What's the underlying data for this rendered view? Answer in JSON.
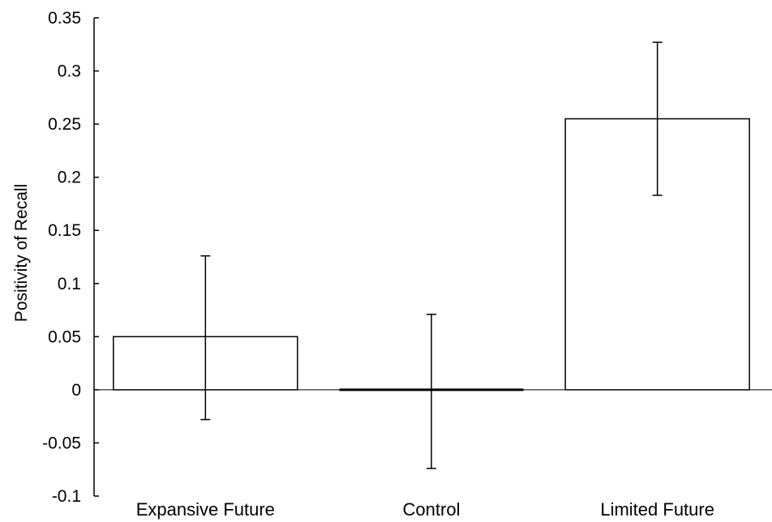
{
  "chart_data": {
    "type": "bar",
    "title": "",
    "xlabel": "",
    "ylabel": "Positivity of Recall",
    "categories": [
      "Expansive Future",
      "Control",
      "Limited Future"
    ],
    "values": [
      0.05,
      0.0,
      0.255
    ],
    "error_upper": [
      0.126,
      0.071,
      0.327
    ],
    "error_lower": [
      -0.028,
      -0.074,
      0.183
    ],
    "ylim": [
      -0.1,
      0.35
    ],
    "yticks": [
      -0.1,
      -0.05,
      0,
      0.05,
      0.1,
      0.15,
      0.2,
      0.25,
      0.3,
      0.35
    ],
    "ytick_labels": [
      "-0.1",
      "-0.05",
      "0",
      "0.05",
      "0.1",
      "0.15",
      "0.2",
      "0.25",
      "0.3",
      "0.35"
    ],
    "grid": false,
    "legend": "none",
    "bar_fill": "#ffffff",
    "bar_stroke": "#000000"
  }
}
